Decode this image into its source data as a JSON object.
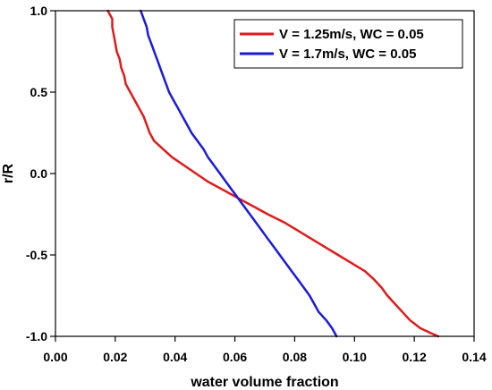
{
  "chart_data": {
    "type": "line",
    "title": "",
    "xlabel": "water volume fraction",
    "ylabel": "r/R",
    "xlim": [
      0.0,
      0.14
    ],
    "ylim": [
      -1.0,
      1.0
    ],
    "xticks": [
      0.0,
      0.02,
      0.04,
      0.06,
      0.08,
      0.1,
      0.12,
      0.14
    ],
    "yticks": [
      -1.0,
      -0.5,
      0.0,
      0.5,
      1.0
    ],
    "xtick_labels": [
      "0.00",
      "0.02",
      "0.04",
      "0.06",
      "0.08",
      "0.10",
      "0.12",
      "0.14"
    ],
    "ytick_labels": [
      "-1.0",
      "-0.5",
      "0.0",
      "0.5",
      "1.0"
    ],
    "grid": false,
    "legend_position": "top-right",
    "series": [
      {
        "name": "V = 1.25m/s, WC = 0.05",
        "color": "#e01b1b",
        "points": [
          [
            0.0175,
            1.0
          ],
          [
            0.019,
            0.95
          ],
          [
            0.019,
            0.9
          ],
          [
            0.0195,
            0.85
          ],
          [
            0.02,
            0.8
          ],
          [
            0.0205,
            0.75
          ],
          [
            0.0215,
            0.7
          ],
          [
            0.022,
            0.65
          ],
          [
            0.023,
            0.6
          ],
          [
            0.0235,
            0.55
          ],
          [
            0.025,
            0.5
          ],
          [
            0.0265,
            0.45
          ],
          [
            0.028,
            0.4
          ],
          [
            0.0295,
            0.35
          ],
          [
            0.0305,
            0.3
          ],
          [
            0.0315,
            0.25
          ],
          [
            0.033,
            0.2
          ],
          [
            0.036,
            0.15
          ],
          [
            0.039,
            0.1
          ],
          [
            0.043,
            0.05
          ],
          [
            0.047,
            0.0
          ],
          [
            0.051,
            -0.05
          ],
          [
            0.056,
            -0.1
          ],
          [
            0.061,
            -0.15
          ],
          [
            0.066,
            -0.2
          ],
          [
            0.071,
            -0.25
          ],
          [
            0.0765,
            -0.3
          ],
          [
            0.081,
            -0.35
          ],
          [
            0.0855,
            -0.4
          ],
          [
            0.09,
            -0.45
          ],
          [
            0.0945,
            -0.5
          ],
          [
            0.099,
            -0.55
          ],
          [
            0.1035,
            -0.6
          ],
          [
            0.1065,
            -0.65
          ],
          [
            0.109,
            -0.7
          ],
          [
            0.111,
            -0.75
          ],
          [
            0.1135,
            -0.8
          ],
          [
            0.116,
            -0.85
          ],
          [
            0.1185,
            -0.9
          ],
          [
            0.122,
            -0.95
          ],
          [
            0.1255,
            -0.98
          ],
          [
            0.128,
            -1.0
          ]
        ]
      },
      {
        "name": "V = 1.7m/s, WC = 0.05",
        "color": "#1a1adc",
        "points": [
          [
            0.0285,
            1.0
          ],
          [
            0.0295,
            0.95
          ],
          [
            0.0305,
            0.9
          ],
          [
            0.031,
            0.85
          ],
          [
            0.032,
            0.8
          ],
          [
            0.033,
            0.75
          ],
          [
            0.034,
            0.7
          ],
          [
            0.035,
            0.65
          ],
          [
            0.036,
            0.6
          ],
          [
            0.037,
            0.55
          ],
          [
            0.038,
            0.5
          ],
          [
            0.0395,
            0.45
          ],
          [
            0.041,
            0.4
          ],
          [
            0.0425,
            0.35
          ],
          [
            0.044,
            0.3
          ],
          [
            0.0455,
            0.25
          ],
          [
            0.0475,
            0.2
          ],
          [
            0.0495,
            0.15
          ],
          [
            0.051,
            0.1
          ],
          [
            0.053,
            0.05
          ],
          [
            0.055,
            0.0
          ],
          [
            0.057,
            -0.05
          ],
          [
            0.059,
            -0.1
          ],
          [
            0.061,
            -0.15
          ],
          [
            0.063,
            -0.2
          ],
          [
            0.065,
            -0.25
          ],
          [
            0.067,
            -0.3
          ],
          [
            0.069,
            -0.35
          ],
          [
            0.071,
            -0.4
          ],
          [
            0.073,
            -0.45
          ],
          [
            0.075,
            -0.5
          ],
          [
            0.077,
            -0.55
          ],
          [
            0.079,
            -0.6
          ],
          [
            0.081,
            -0.65
          ],
          [
            0.083,
            -0.7
          ],
          [
            0.085,
            -0.75
          ],
          [
            0.0865,
            -0.8
          ],
          [
            0.088,
            -0.85
          ],
          [
            0.0905,
            -0.9
          ],
          [
            0.0925,
            -0.95
          ],
          [
            0.094,
            -1.0
          ]
        ]
      }
    ]
  }
}
